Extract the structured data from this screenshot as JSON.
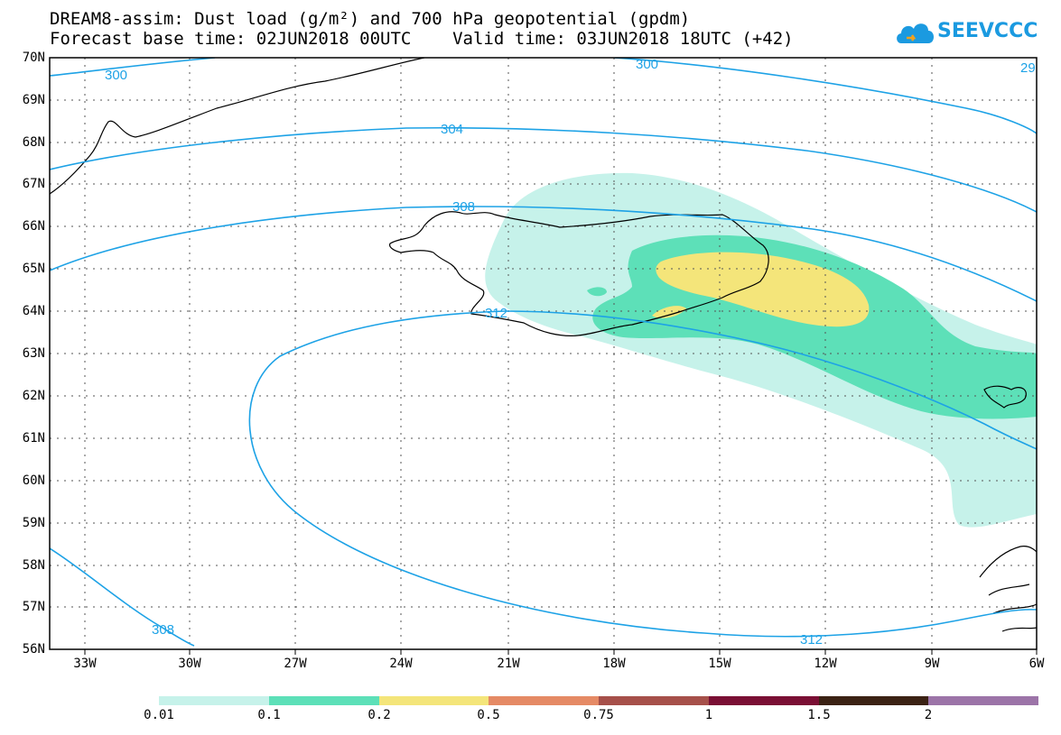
{
  "title": {
    "line1": "DREAM8-assim: Dust load (g/m²) and 700 hPa geopotential (gpdm)",
    "line2": "Forecast base time: 02JUN2018 00UTC    Valid time: 03JUN2018 18UTC (+42)"
  },
  "logo": {
    "text": "SEEVCCC",
    "icon": "cloud-icon",
    "color": "#1b9ae0"
  },
  "map": {
    "region": "Iceland",
    "lon_range": [
      -34.5,
      -6
    ],
    "lat_range": [
      56,
      70
    ],
    "grid": true,
    "lat_ticks": [
      "70N",
      "69N",
      "68N",
      "67N",
      "66N",
      "65N",
      "64N",
      "63N",
      "62N",
      "61N",
      "60N",
      "59N",
      "58N",
      "57N",
      "56N"
    ],
    "lon_ticks": [
      "33W",
      "30W",
      "27W",
      "24W",
      "21W",
      "18W",
      "15W",
      "12W",
      "9W",
      "6W"
    ],
    "contour_labels": [
      {
        "label": "300"
      },
      {
        "label": "300"
      },
      {
        "label": "29"
      },
      {
        "label": "304"
      },
      {
        "label": "308"
      },
      {
        "label": "312"
      },
      {
        "label": "308"
      },
      {
        "label": "312"
      }
    ],
    "contour_color": "#1da2e6",
    "dust_levels": [
      "0.01 – 0.1",
      "0.1 – 0.2",
      "0.2 – 0.5"
    ]
  },
  "legend": {
    "colors": [
      "#c6f2ea",
      "#5de0b8",
      "#f4e57a",
      "#e58a65",
      "#a6504a",
      "#7a0f34",
      "#3b2214",
      "#9c74a8"
    ],
    "labels": [
      "0.01",
      "0.1",
      "0.2",
      "0.5",
      "0.75",
      "1",
      "1.5",
      "2"
    ]
  }
}
